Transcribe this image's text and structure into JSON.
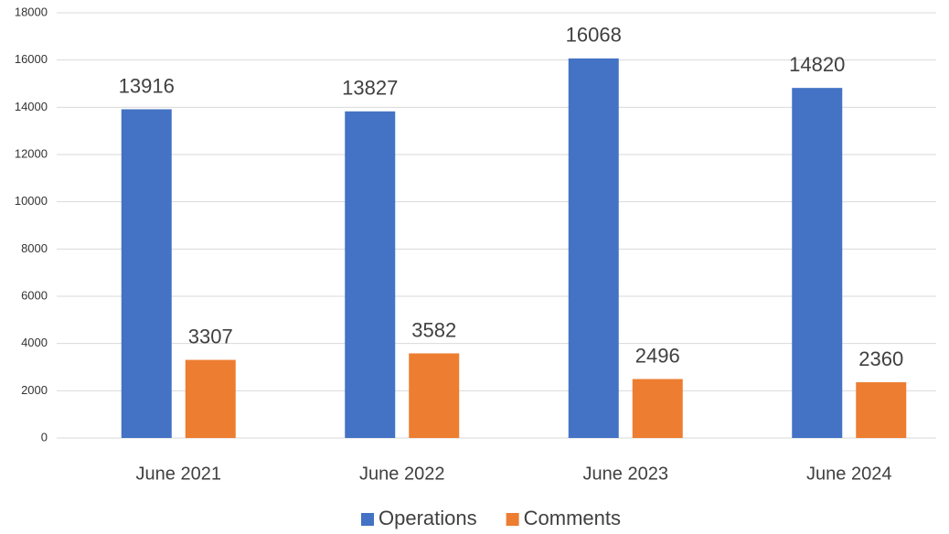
{
  "chart_data": {
    "type": "bar",
    "categories": [
      "June 2021",
      "June 2022",
      "June 2023",
      "June 2024"
    ],
    "series": [
      {
        "name": "Operations",
        "color": "#4472c4",
        "values": [
          13916,
          13827,
          16068,
          14820
        ]
      },
      {
        "name": "Comments",
        "color": "#ed7d31",
        "values": [
          3307,
          3582,
          2496,
          2360
        ]
      }
    ],
    "ylim": [
      0,
      18000
    ],
    "yticks": [
      0,
      2000,
      4000,
      6000,
      8000,
      10000,
      12000,
      14000,
      16000,
      18000
    ],
    "grid": true,
    "legend": "bottom"
  }
}
